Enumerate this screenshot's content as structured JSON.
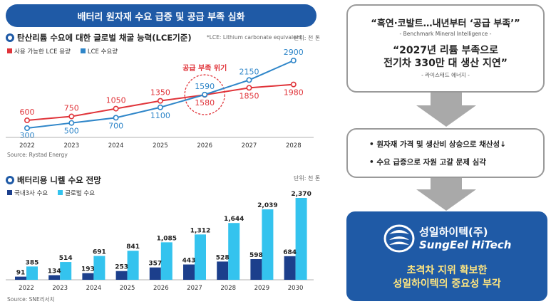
{
  "banner": "배터리 원자재 수요 급증 및 공급 부족 심화",
  "lce": {
    "title": "탄산리튬 수요에 대한 글로벌 채굴 능력(LCE기준)",
    "note": "*LCE: Lithium carbonate equivalent",
    "unit": "단위: 천 톤",
    "legend": [
      "사용 가능한 LCE 용량",
      "LCE 수요량"
    ],
    "crisis_label": "공급 부족 위기",
    "source": "Source: Rystad Energy"
  },
  "nickel": {
    "title": "배터리용 니켈 수요 전망",
    "unit": "단위: 천 톤",
    "legend": [
      "국내3사 수요",
      "글로벌 수요"
    ],
    "source": "Source: SNE리서치"
  },
  "quote": {
    "q1": "“흑연·코발트…내년부터 ‘공급 부족’”",
    "q1_source": "- Benchmark Mineral Intelligence -",
    "q2_line1": "“2027년 리튬 부족으로",
    "q2_line2": "전기차 330만 대 생산 지연”",
    "q2_source": "- 라이스태드 에너지 -"
  },
  "bullets": [
    "• 원자재 가격 및 생산비 상승으로 채산성↓",
    "• 수요 급증으로 자원 고갈 문제 심각"
  ],
  "brand": {
    "name_ko": "성일하이텍(주)",
    "name_en": "SungEel HiTech",
    "slogan_line1": "초격차 지위 확보한",
    "slogan_line2": "성일하이텍의 중요성 부각"
  },
  "colors": {
    "blue": "#1f5aa6",
    "red": "#e0343a",
    "lineBlue": "#2f86c9",
    "navy": "#1c3f8c",
    "cyan": "#34c3ee",
    "yellow": "#ffe680"
  },
  "chart_data": [
    {
      "type": "line",
      "title": "탄산리튬 수요에 대한 글로벌 채굴 능력(LCE기준)",
      "x": [
        "2022",
        "2023",
        "2024",
        "2025",
        "2026",
        "2027",
        "2028"
      ],
      "series": [
        {
          "name": "사용 가능한 LCE 용량",
          "values": [
            600,
            750,
            1050,
            1350,
            1580,
            1850,
            1980
          ]
        },
        {
          "name": "LCE 수요량",
          "values": [
            300,
            500,
            700,
            1100,
            1590,
            2150,
            2900
          ]
        }
      ],
      "ylim": [
        300,
        2900
      ],
      "ylabel": "천 톤"
    },
    {
      "type": "bar",
      "title": "배터리용 니켈 수요 전망",
      "categories": [
        "2022",
        "2023",
        "2024",
        "2025",
        "2026",
        "2027",
        "2028",
        "2029",
        "2030"
      ],
      "series": [
        {
          "name": "국내3사 수요",
          "values": [
            91,
            134,
            193,
            253,
            357,
            443,
            528,
            598,
            684
          ]
        },
        {
          "name": "글로벌 수요",
          "values": [
            385,
            514,
            691,
            841,
            1085,
            1312,
            1644,
            2039,
            2370
          ]
        }
      ],
      "ylim": [
        0,
        2370
      ],
      "ylabel": "천 톤"
    }
  ]
}
